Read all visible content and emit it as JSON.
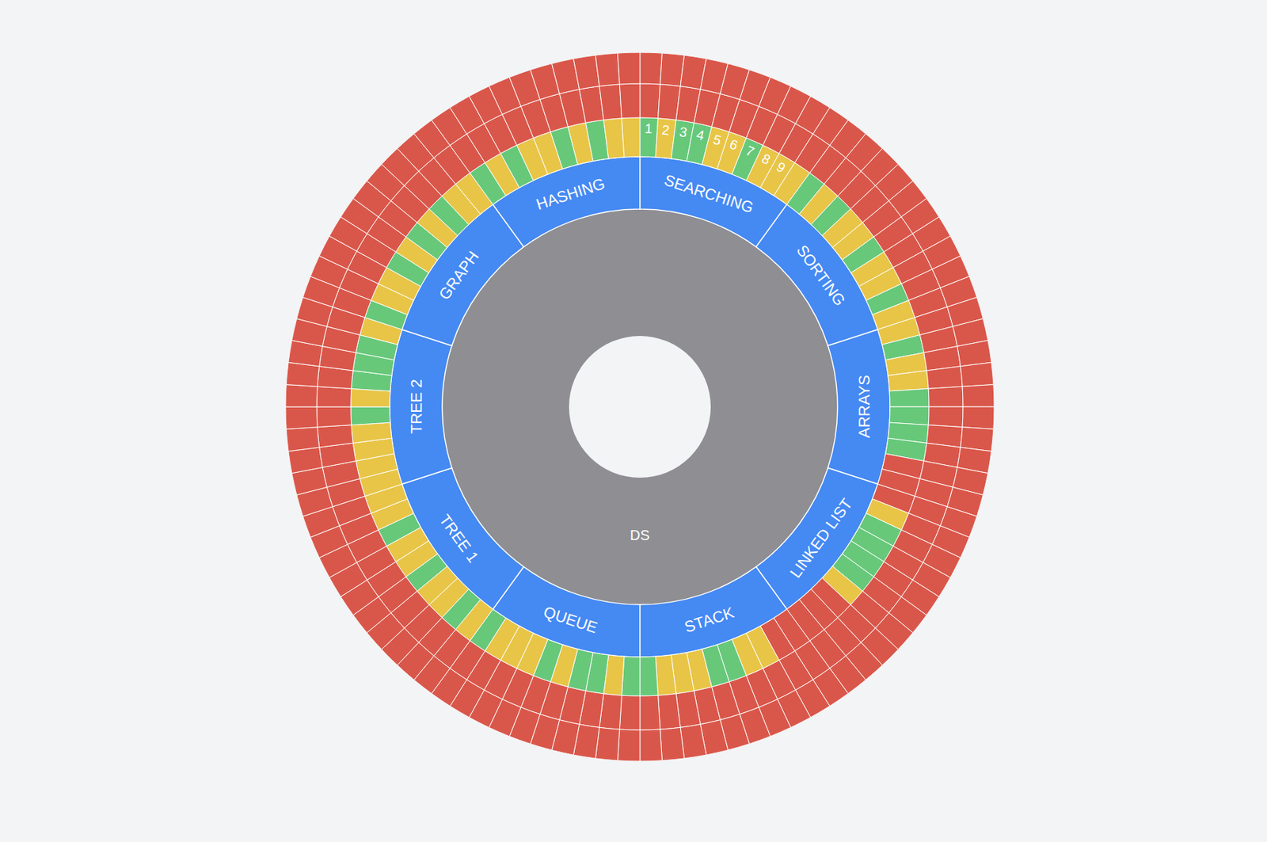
{
  "chart_data": {
    "type": "sunburst",
    "root": {
      "label": "DS",
      "color": "#8e8e93"
    },
    "topics": [
      {
        "label": "SEARCHING",
        "color": "#4589f2",
        "cell_labels": [
          1,
          2,
          3,
          4,
          5,
          6,
          7,
          8,
          9,
          null
        ],
        "rings": [
          {
            "colors": [
              "#67c87a",
              "#e8c547",
              "#67c87a",
              "#67c87a",
              "#e8c547",
              "#e8c547",
              "#67c87a",
              "#e8c547",
              "#e8c547",
              "#e8c547"
            ]
          },
          {
            "color": "#d9574a"
          },
          {
            "color": "#d9574a"
          }
        ]
      },
      {
        "label": "SORTING",
        "color": "#4589f2",
        "rings": [
          {
            "colors": [
              "#67c87a",
              "#e8c547",
              "#67c87a",
              "#e8c547",
              "#e8c547",
              "#67c87a",
              "#e8c547",
              "#e8c547",
              "#67c87a",
              "#e8c547"
            ]
          },
          {
            "color": "#d9574a"
          },
          {
            "color": "#d9574a"
          }
        ]
      },
      {
        "label": "ARRAYS",
        "color": "#4589f2",
        "rings": [
          {
            "colors": [
              "#e8c547",
              "#67c87a",
              "#e8c547",
              "#e8c547",
              "#67c87a",
              "#67c87a",
              "#67c87a",
              "#67c87a",
              "#d9574a",
              "#d9574a"
            ]
          },
          {
            "color": "#d9574a"
          },
          {
            "color": "#d9574a"
          }
        ]
      },
      {
        "label": "LINKED LIST",
        "color": "#4589f2",
        "rings": [
          {
            "colors": [
              "#d9574a",
              "#e8c547",
              "#67c87a",
              "#67c87a",
              "#67c87a",
              "#67c87a",
              "#e8c547",
              "#d9574a",
              "#d9574a",
              "#d9574a"
            ]
          },
          {
            "color": "#d9574a"
          },
          {
            "color": "#d9574a"
          }
        ]
      },
      {
        "label": "STACK",
        "color": "#4589f2",
        "rings": [
          {
            "colors": [
              "#d9574a",
              "#d9574a",
              "#e8c547",
              "#e8c547",
              "#67c87a",
              "#67c87a",
              "#e8c547",
              "#e8c547",
              "#e8c547",
              "#67c87a"
            ]
          },
          {
            "color": "#d9574a"
          },
          {
            "color": "#d9574a"
          }
        ]
      },
      {
        "label": "QUEUE",
        "color": "#4589f2",
        "rings": [
          {
            "colors": [
              "#67c87a",
              "#e8c547",
              "#67c87a",
              "#67c87a",
              "#e8c547",
              "#67c87a",
              "#e8c547",
              "#e8c547",
              "#e8c547",
              "#67c87a"
            ]
          },
          {
            "color": "#d9574a"
          },
          {
            "color": "#d9574a"
          }
        ]
      },
      {
        "label": "TREE 1",
        "color": "#4589f2",
        "rings": [
          {
            "colors": [
              "#e8c547",
              "#67c87a",
              "#e8c547",
              "#e8c547",
              "#67c87a",
              "#e8c547",
              "#e8c547",
              "#67c87a",
              "#e8c547",
              "#e8c547"
            ]
          },
          {
            "color": "#d9574a"
          },
          {
            "color": "#d9574a"
          }
        ]
      },
      {
        "label": "TREE 2",
        "color": "#4589f2",
        "rings": [
          {
            "colors": [
              "#e8c547",
              "#e8c547",
              "#e8c547",
              "#e8c547",
              "#67c87a",
              "#e8c547",
              "#67c87a",
              "#67c87a",
              "#67c87a",
              "#e8c547"
            ]
          },
          {
            "color": "#d9574a"
          },
          {
            "color": "#d9574a"
          }
        ]
      },
      {
        "label": "GRAPH",
        "color": "#4589f2",
        "rings": [
          {
            "colors": [
              "#67c87a",
              "#e8c547",
              "#e8c547",
              "#67c87a",
              "#e8c547",
              "#67c87a",
              "#e8c547",
              "#67c87a",
              "#e8c547",
              "#e8c547"
            ]
          },
          {
            "color": "#d9574a"
          },
          {
            "color": "#d9574a"
          }
        ]
      },
      {
        "label": "HASHING",
        "color": "#4589f2",
        "rings": [
          {
            "colors": [
              "#67c87a",
              "#e8c547",
              "#67c87a",
              "#e8c547",
              "#e8c547",
              "#67c87a",
              "#e8c547",
              "#67c87a",
              "#e8c547",
              "#e8c547"
            ]
          },
          {
            "color": "#d9574a"
          },
          {
            "color": "#d9574a"
          }
        ]
      }
    ]
  }
}
